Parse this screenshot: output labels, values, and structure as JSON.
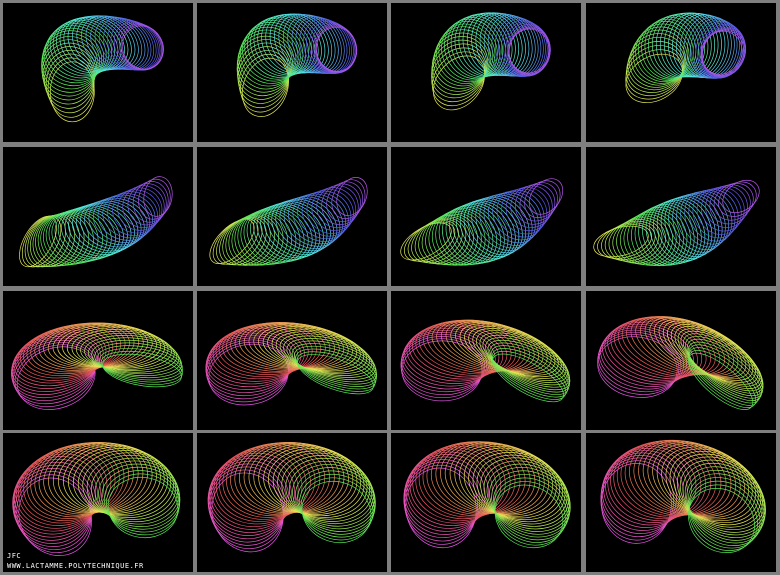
{
  "credit": {
    "author": "JFC",
    "url": "WWW.LACTAMME.POLYTECHNIQUE.FR"
  }
}
